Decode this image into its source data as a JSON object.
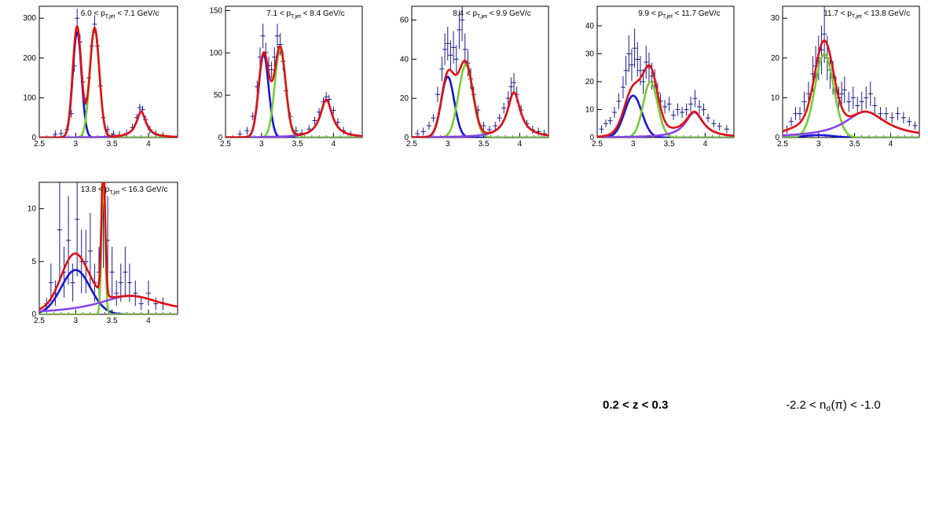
{
  "colors": {
    "data": "#1a1a8c",
    "total_fit": "#e01010",
    "blue_component": "#1515d8",
    "green_component": "#77cc33",
    "violet_component": "#8844ee",
    "frame": "#000000"
  },
  "captions": {
    "z_range": "0.2 < z < 0.3",
    "nsigma_prefix": "-2.2 < n",
    "nsigma_sub": "σ",
    "nsigma_suffix": "(π) < -1.0"
  },
  "chart_data": [
    {
      "type": "line",
      "label": {
        "prefix": "6.0 < p",
        "sub": "T,jet",
        "suffix": " < 7.1 GeV/c"
      },
      "xlim": [
        2.5,
        4.4
      ],
      "ylim": [
        0,
        330
      ],
      "xticks": [
        2.5,
        3,
        3.5,
        4
      ],
      "xtick_labels": [
        "2.5",
        "3",
        "3.5",
        "4"
      ],
      "yticks": [
        0,
        100,
        200,
        300
      ],
      "ytick_labels": [
        "0",
        "100",
        "200",
        "300"
      ],
      "components": [
        {
          "color": "blue",
          "center": 3.02,
          "width": 0.06,
          "amp": 265,
          "tail": 0
        },
        {
          "color": "green",
          "center": 3.26,
          "width": 0.065,
          "amp": 275,
          "tail": 0
        },
        {
          "color": "violet",
          "center": 3.9,
          "width": 0.08,
          "amp": 65,
          "tail": 0
        }
      ],
      "total_extra": {
        "center": 3.0,
        "width": 0.05,
        "amp": 15
      },
      "points": [
        [
          2.72,
          8
        ],
        [
          2.8,
          10
        ],
        [
          2.88,
          20
        ],
        [
          2.94,
          60
        ],
        [
          2.98,
          180
        ],
        [
          3.02,
          300
        ],
        [
          3.06,
          240
        ],
        [
          3.1,
          140
        ],
        [
          3.14,
          90
        ],
        [
          3.18,
          150
        ],
        [
          3.22,
          230
        ],
        [
          3.26,
          285
        ],
        [
          3.3,
          230
        ],
        [
          3.34,
          130
        ],
        [
          3.38,
          50
        ],
        [
          3.44,
          20
        ],
        [
          3.52,
          8
        ],
        [
          3.6,
          6
        ],
        [
          3.7,
          10
        ],
        [
          3.78,
          25
        ],
        [
          3.84,
          50
        ],
        [
          3.88,
          75
        ],
        [
          3.92,
          70
        ],
        [
          3.96,
          45
        ],
        [
          4.02,
          20
        ],
        [
          4.1,
          8
        ],
        [
          4.2,
          4
        ]
      ],
      "errors_rel": 0.08
    },
    {
      "type": "line",
      "label": {
        "prefix": "7.1 < p",
        "sub": "T,jet",
        "suffix": " < 8.4 GeV/c"
      },
      "xlim": [
        2.5,
        4.4
      ],
      "ylim": [
        0,
        155
      ],
      "xticks": [
        2.5,
        3,
        3.5,
        4
      ],
      "xtick_labels": [
        "2.5",
        "3",
        "3.5",
        "4"
      ],
      "yticks": [
        0,
        50,
        100,
        150
      ],
      "ytick_labels": [
        "0",
        "50",
        "100",
        "150"
      ],
      "components": [
        {
          "color": "blue",
          "center": 3.03,
          "width": 0.07,
          "amp": 98,
          "tail": 0
        },
        {
          "color": "green",
          "center": 3.26,
          "width": 0.075,
          "amp": 105,
          "tail": 0
        },
        {
          "color": "violet",
          "center": 3.9,
          "width": 0.1,
          "amp": 45,
          "tail": 0
        }
      ],
      "total_extra": {
        "center": 3.15,
        "width": 0.06,
        "amp": 8
      },
      "points": [
        [
          2.7,
          4
        ],
        [
          2.8,
          8
        ],
        [
          2.88,
          25
        ],
        [
          2.94,
          60
        ],
        [
          2.98,
          95
        ],
        [
          3.02,
          120
        ],
        [
          3.06,
          100
        ],
        [
          3.1,
          85
        ],
        [
          3.14,
          80
        ],
        [
          3.18,
          95
        ],
        [
          3.22,
          120
        ],
        [
          3.26,
          110
        ],
        [
          3.3,
          90
        ],
        [
          3.34,
          55
        ],
        [
          3.4,
          25
        ],
        [
          3.48,
          8
        ],
        [
          3.56,
          5
        ],
        [
          3.66,
          10
        ],
        [
          3.74,
          20
        ],
        [
          3.8,
          30
        ],
        [
          3.86,
          42
        ],
        [
          3.9,
          48
        ],
        [
          3.94,
          45
        ],
        [
          4.0,
          32
        ],
        [
          4.06,
          18
        ],
        [
          4.14,
          8
        ],
        [
          4.24,
          3
        ]
      ],
      "errors_rel": 0.12
    },
    {
      "type": "line",
      "label": {
        "prefix": "8.4 < p",
        "sub": "T,jet",
        "suffix": " < 9.9 GeV/c"
      },
      "xlim": [
        2.5,
        4.4
      ],
      "ylim": [
        0,
        67
      ],
      "xticks": [
        2.5,
        3,
        3.5,
        4
      ],
      "xtick_labels": [
        "2.5",
        "3",
        "3.5",
        "4"
      ],
      "yticks": [
        0,
        20,
        40,
        60
      ],
      "ytick_labels": [
        "0",
        "20",
        "40",
        "60"
      ],
      "components": [
        {
          "color": "blue",
          "center": 3.0,
          "width": 0.09,
          "amp": 31,
          "tail": 0
        },
        {
          "color": "green",
          "center": 3.25,
          "width": 0.1,
          "amp": 37,
          "tail": 0
        },
        {
          "color": "violet",
          "center": 3.92,
          "width": 0.11,
          "amp": 23,
          "tail": 0
        }
      ],
      "total_extra": {
        "center": 3.12,
        "width": 0.08,
        "amp": 3
      },
      "points": [
        [
          2.58,
          2
        ],
        [
          2.66,
          3
        ],
        [
          2.74,
          6
        ],
        [
          2.8,
          10
        ],
        [
          2.86,
          22
        ],
        [
          2.92,
          35
        ],
        [
          2.96,
          45
        ],
        [
          3.0,
          48
        ],
        [
          3.04,
          42
        ],
        [
          3.08,
          46
        ],
        [
          3.12,
          40
        ],
        [
          3.16,
          55
        ],
        [
          3.2,
          60
        ],
        [
          3.24,
          45
        ],
        [
          3.28,
          38
        ],
        [
          3.32,
          30
        ],
        [
          3.36,
          22
        ],
        [
          3.42,
          14
        ],
        [
          3.5,
          6
        ],
        [
          3.58,
          4
        ],
        [
          3.66,
          6
        ],
        [
          3.72,
          10
        ],
        [
          3.78,
          15
        ],
        [
          3.84,
          20
        ],
        [
          3.88,
          26
        ],
        [
          3.92,
          28
        ],
        [
          3.96,
          22
        ],
        [
          4.02,
          14
        ],
        [
          4.1,
          7
        ],
        [
          4.18,
          4
        ],
        [
          4.26,
          3
        ],
        [
          4.34,
          2
        ]
      ],
      "errors_rel": 0.18
    },
    {
      "type": "line",
      "label": {
        "prefix": "9.9 < p",
        "sub": "T,jet",
        "suffix": " < 11.7 GeV/c"
      },
      "xlim": [
        2.5,
        4.4
      ],
      "ylim": [
        0,
        47
      ],
      "xticks": [
        2.5,
        3,
        3.5,
        4
      ],
      "xtick_labels": [
        "2.5",
        "3",
        "3.5",
        "4"
      ],
      "yticks": [
        0,
        10,
        20,
        30,
        40
      ],
      "ytick_labels": [
        "0",
        "10",
        "20",
        "30",
        "40"
      ],
      "components": [
        {
          "color": "blue",
          "center": 3.0,
          "width": 0.12,
          "amp": 15,
          "tail": 0
        },
        {
          "color": "green",
          "center": 3.24,
          "width": 0.1,
          "amp": 20,
          "tail": 0
        },
        {
          "color": "violet",
          "center": 3.85,
          "width": 0.15,
          "amp": 9,
          "tail": 0
        }
      ],
      "total_extra": {
        "center": 3.2,
        "width": 0.3,
        "amp": 3
      },
      "points": [
        [
          2.56,
          3
        ],
        [
          2.62,
          5
        ],
        [
          2.68,
          6
        ],
        [
          2.74,
          9
        ],
        [
          2.8,
          13
        ],
        [
          2.86,
          18
        ],
        [
          2.9,
          24
        ],
        [
          2.94,
          30
        ],
        [
          2.98,
          26
        ],
        [
          3.02,
          32
        ],
        [
          3.06,
          28
        ],
        [
          3.1,
          24
        ],
        [
          3.14,
          20
        ],
        [
          3.18,
          27
        ],
        [
          3.22,
          25
        ],
        [
          3.26,
          22
        ],
        [
          3.3,
          20
        ],
        [
          3.34,
          16
        ],
        [
          3.38,
          13
        ],
        [
          3.44,
          11
        ],
        [
          3.5,
          12
        ],
        [
          3.56,
          8
        ],
        [
          3.62,
          10
        ],
        [
          3.68,
          9
        ],
        [
          3.74,
          10
        ],
        [
          3.8,
          12
        ],
        [
          3.86,
          14
        ],
        [
          3.92,
          11
        ],
        [
          3.98,
          10
        ],
        [
          4.04,
          7
        ],
        [
          4.12,
          5
        ],
        [
          4.2,
          4
        ],
        [
          4.3,
          3
        ]
      ],
      "errors_rel": 0.22
    },
    {
      "type": "line",
      "label": {
        "prefix": "11.7 < p",
        "sub": "T,jet",
        "suffix": " < 13.8 GeV/c"
      },
      "xlim": [
        2.5,
        4.4
      ],
      "ylim": [
        0,
        33
      ],
      "xticks": [
        2.5,
        3,
        3.5,
        4
      ],
      "xtick_labels": [
        "2.5",
        "3",
        "3.5",
        "4"
      ],
      "yticks": [
        0,
        10,
        20,
        30
      ],
      "ytick_labels": [
        "0",
        "10",
        "20",
        "30"
      ],
      "components": [
        {
          "color": "blue",
          "center": 3.0,
          "width": 0.2,
          "amp": 0.6,
          "tail": 0
        },
        {
          "color": "green",
          "center": 3.08,
          "width": 0.13,
          "amp": 21,
          "tail": 0
        },
        {
          "color": "violet",
          "center": 3.65,
          "width": 0.35,
          "amp": 6.5,
          "tail": 0
        }
      ],
      "total_extra": {
        "center": 2.8,
        "width": 0.25,
        "amp": 2
      },
      "points": [
        [
          2.56,
          2
        ],
        [
          2.62,
          4
        ],
        [
          2.68,
          6
        ],
        [
          2.74,
          6
        ],
        [
          2.8,
          9
        ],
        [
          2.86,
          11
        ],
        [
          2.92,
          16
        ],
        [
          2.96,
          18
        ],
        [
          3.0,
          20
        ],
        [
          3.04,
          22
        ],
        [
          3.08,
          26
        ],
        [
          3.12,
          20
        ],
        [
          3.16,
          17
        ],
        [
          3.2,
          15
        ],
        [
          3.24,
          12
        ],
        [
          3.28,
          10
        ],
        [
          3.32,
          11
        ],
        [
          3.36,
          12
        ],
        [
          3.42,
          9
        ],
        [
          3.48,
          10
        ],
        [
          3.54,
          8
        ],
        [
          3.6,
          9
        ],
        [
          3.66,
          10
        ],
        [
          3.72,
          11
        ],
        [
          3.78,
          8
        ],
        [
          3.86,
          6
        ],
        [
          3.94,
          6
        ],
        [
          4.02,
          5
        ],
        [
          4.1,
          6
        ],
        [
          4.18,
          5
        ],
        [
          4.26,
          4
        ],
        [
          4.34,
          3
        ]
      ],
      "errors_rel": 0.28
    },
    {
      "type": "line",
      "label": {
        "prefix": "13.8 < p",
        "sub": "T,jet",
        "suffix": " < 16.3 GeV/c"
      },
      "xlim": [
        2.5,
        4.4
      ],
      "ylim": [
        0,
        12.5
      ],
      "xticks": [
        2.5,
        3,
        3.5,
        4
      ],
      "xtick_labels": [
        "2.5",
        "3",
        "3.5",
        "4"
      ],
      "yticks": [
        0,
        5,
        10
      ],
      "ytick_labels": [
        "0",
        "5",
        "10"
      ],
      "components": [
        {
          "color": "blue",
          "center": 3.0,
          "width": 0.2,
          "amp": 4.2,
          "tail": 0
        },
        {
          "color": "green",
          "center": 3.38,
          "width": 0.025,
          "amp": 12.5,
          "tail": 0
        },
        {
          "color": "violet",
          "center": 3.75,
          "width": 0.55,
          "amp": 1.75,
          "tail": 0
        }
      ],
      "total_extra": {
        "center": 2.95,
        "width": 0.15,
        "amp": 1
      },
      "points": [
        [
          2.6,
          1
        ],
        [
          2.66,
          3
        ],
        [
          2.72,
          2
        ],
        [
          2.78,
          8
        ],
        [
          2.84,
          4
        ],
        [
          2.9,
          7
        ],
        [
          2.96,
          3
        ],
        [
          3.02,
          9
        ],
        [
          3.08,
          5
        ],
        [
          3.14,
          5
        ],
        [
          3.2,
          6
        ],
        [
          3.26,
          3
        ],
        [
          3.32,
          4
        ],
        [
          3.38,
          11
        ],
        [
          3.44,
          7
        ],
        [
          3.5,
          4
        ],
        [
          3.56,
          2
        ],
        [
          3.62,
          3
        ],
        [
          3.68,
          4
        ],
        [
          3.74,
          3
        ],
        [
          3.82,
          2
        ],
        [
          3.9,
          1
        ],
        [
          4.0,
          2
        ],
        [
          4.1,
          1
        ],
        [
          4.2,
          1
        ]
      ],
      "errors_rel": 0.6
    }
  ]
}
